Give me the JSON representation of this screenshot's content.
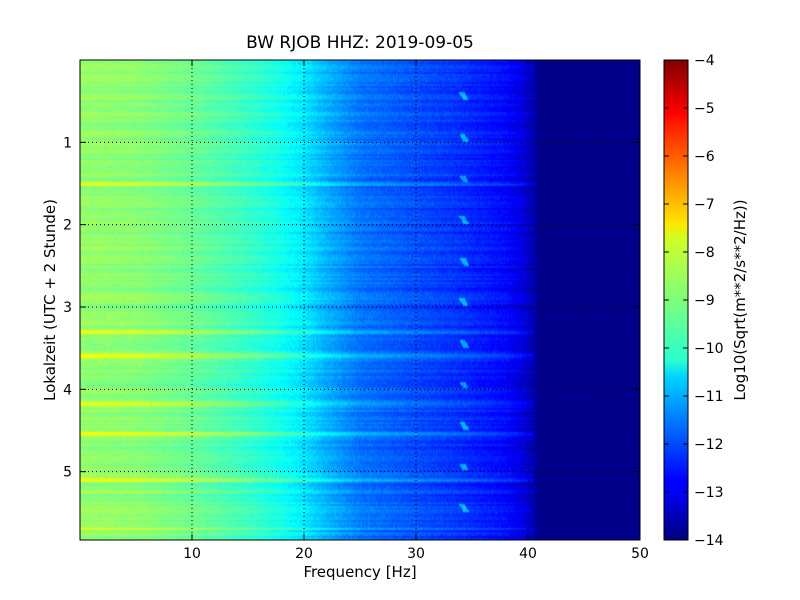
{
  "chart_data": {
    "type": "heatmap",
    "title": "BW RJOB HHZ: 2019-09-05",
    "xlabel": "Frequency [Hz]",
    "ylabel": "Lokalzeit (UTC + 2 Stunde)",
    "xlim": [
      0,
      50
    ],
    "ylim": [
      5.83,
      0
    ],
    "x_ticks": [
      "10",
      "20",
      "30",
      "40",
      "50"
    ],
    "y_ticks": [
      "1",
      "2",
      "3",
      "4",
      "5"
    ],
    "grid": true,
    "colormap": "jet",
    "colorbar": {
      "label": "Log10(Sqrt(m**2/s**2/Hz))",
      "range": [
        -14,
        -4
      ],
      "ticks": [
        "−4",
        "−5",
        "−6",
        "−7",
        "−8",
        "−9",
        "−10",
        "−11",
        "−12",
        "−13",
        "−14"
      ]
    },
    "profile": {
      "frequency_hz": [
        0,
        5,
        10,
        15,
        18,
        20,
        22,
        25,
        30,
        34,
        38,
        40,
        41,
        50
      ],
      "log10_amplitude": [
        -8.8,
        -8.9,
        -9.2,
        -9.7,
        -10.1,
        -10.5,
        -11.0,
        -11.6,
        -12.0,
        -12.3,
        -12.7,
        -13.2,
        -13.9,
        -13.9
      ]
    },
    "features": {
      "tonal_line_hz": 34.3,
      "tonal_line_repeat_hours": 0.5,
      "noise_burst_hours": [
        1.5,
        3.3,
        3.6,
        4.18,
        4.55,
        5.1,
        5.7
      ]
    }
  }
}
